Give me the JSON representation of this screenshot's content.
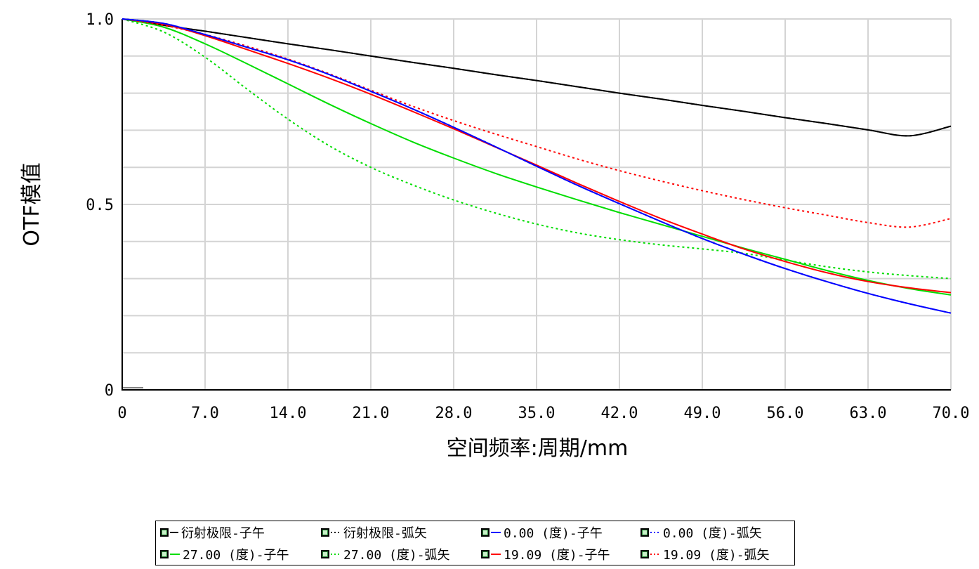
{
  "chart_data": {
    "type": "line",
    "xlabel": "空间频率:周期/mm",
    "ylabel": "OTF模值",
    "xlim": [
      0,
      70
    ],
    "ylim": [
      0,
      1
    ],
    "x_ticks": [
      0,
      7,
      14,
      21,
      28,
      35,
      42,
      49,
      56,
      63,
      70
    ],
    "x_tick_labels": [
      "0",
      "7.0",
      "14.0",
      "21.0",
      "28.0",
      "35.0",
      "42.0",
      "49.0",
      "56.0",
      "63.0",
      "70.0"
    ],
    "y_ticks": [
      0,
      0.5,
      1.0
    ],
    "y_tick_labels": [
      "0",
      "0.5",
      "1.0"
    ],
    "x": [
      0,
      3.5,
      7,
      10.5,
      14,
      17.5,
      21,
      24.5,
      28,
      31.5,
      35,
      38.5,
      42,
      45.5,
      49,
      52.5,
      56,
      59.5,
      63,
      66.5,
      70
    ],
    "grid": true,
    "legend_position": "bottom",
    "series": [
      {
        "name": "衍射极限-子午",
        "color": "#000000",
        "style": "solid",
        "values": [
          1.0,
          0.983,
          0.967,
          0.95,
          0.933,
          0.917,
          0.9,
          0.883,
          0.867,
          0.85,
          0.834,
          0.817,
          0.8,
          0.784,
          0.767,
          0.751,
          0.734,
          0.718,
          0.701,
          0.685,
          0.711
        ]
      },
      {
        "name": "衍射极限-弧矢",
        "color": "#000000",
        "style": "dotted",
        "values": [
          1.0,
          0.983,
          0.967,
          0.95,
          0.933,
          0.917,
          0.9,
          0.883,
          0.867,
          0.85,
          0.834,
          0.817,
          0.8,
          0.784,
          0.767,
          0.751,
          0.734,
          0.718,
          0.701,
          0.685,
          0.711
        ]
      },
      {
        "name": "0.00 (度)-子午",
        "color": "#0000ff",
        "style": "solid",
        "values": [
          1.0,
          0.988,
          0.958,
          0.924,
          0.89,
          0.85,
          0.805,
          0.758,
          0.708,
          0.656,
          0.603,
          0.551,
          0.502,
          0.454,
          0.408,
          0.366,
          0.327,
          0.292,
          0.26,
          0.232,
          0.207
        ]
      },
      {
        "name": "0.00 (度)-弧矢",
        "color": "#0000ff",
        "style": "dotted",
        "values": [
          1.0,
          0.988,
          0.958,
          0.924,
          0.89,
          0.85,
          0.805,
          0.758,
          0.708,
          0.656,
          0.603,
          0.551,
          0.502,
          0.454,
          0.408,
          0.366,
          0.327,
          0.292,
          0.26,
          0.232,
          0.207
        ]
      },
      {
        "name": "27.00 (度)-子午",
        "color": "#00dd00",
        "style": "solid",
        "values": [
          1.0,
          0.978,
          0.933,
          0.88,
          0.825,
          0.77,
          0.718,
          0.669,
          0.625,
          0.584,
          0.547,
          0.512,
          0.478,
          0.446,
          0.414,
          0.382,
          0.352,
          0.322,
          0.295,
          0.273,
          0.256
        ]
      },
      {
        "name": "27.00 (度)-弧矢",
        "color": "#00dd00",
        "style": "dotted",
        "values": [
          1.0,
          0.965,
          0.897,
          0.812,
          0.73,
          0.658,
          0.6,
          0.553,
          0.512,
          0.477,
          0.447,
          0.423,
          0.405,
          0.391,
          0.38,
          0.368,
          0.35,
          0.332,
          0.318,
          0.308,
          0.3
        ]
      },
      {
        "name": "19.09 (度)-子午",
        "color": "#ff0000",
        "style": "solid",
        "values": [
          1.0,
          0.986,
          0.955,
          0.918,
          0.88,
          0.84,
          0.797,
          0.751,
          0.704,
          0.655,
          0.606,
          0.556,
          0.508,
          0.462,
          0.42,
          0.38,
          0.346,
          0.316,
          0.292,
          0.275,
          0.262
        ]
      },
      {
        "name": "19.09 (度)-弧矢",
        "color": "#ff0000",
        "style": "dotted",
        "values": [
          1.0,
          0.983,
          0.958,
          0.927,
          0.892,
          0.852,
          0.808,
          0.765,
          0.726,
          0.69,
          0.656,
          0.622,
          0.591,
          0.563,
          0.537,
          0.513,
          0.491,
          0.471,
          0.451,
          0.439,
          0.462
        ]
      }
    ]
  },
  "legend": {
    "items": [
      "衍射极限-子午",
      "衍射极限-弧矢",
      "0.00 (度)-子午",
      "0.00 (度)-弧矢",
      "27.00 (度)-子午",
      "27.00 (度)-弧矢",
      "19.09 (度)-子午",
      "19.09 (度)-弧矢"
    ]
  }
}
